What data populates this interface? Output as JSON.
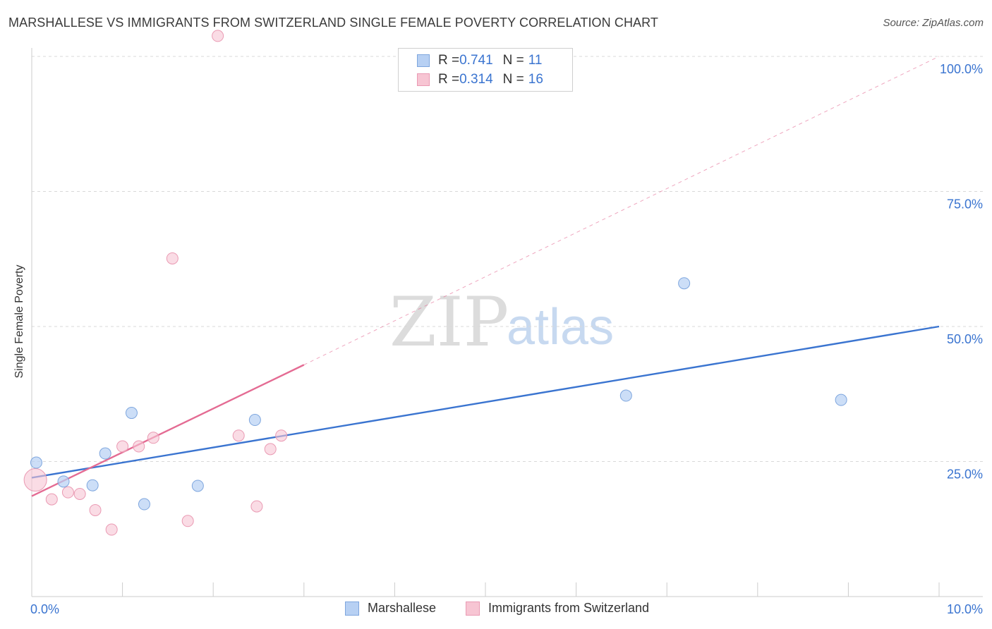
{
  "title": "MARSHALLESE VS IMMIGRANTS FROM SWITZERLAND SINGLE FEMALE POVERTY CORRELATION CHART",
  "source": "Source: ZipAtlas.com",
  "watermark": {
    "part1": "ZIP",
    "part2": "atlas"
  },
  "legend_top": {
    "rows": [
      {
        "r_label": "R = ",
        "r_value": "0.741",
        "n_label": "N = ",
        "n_value": "11"
      },
      {
        "r_label": "R = ",
        "r_value": "0.314",
        "n_label": "N = ",
        "n_value": "16"
      }
    ]
  },
  "legend_bottom": [
    "Marshallese",
    "Immigrants from Switzerland"
  ],
  "colors": {
    "blue_fill": "#b7d0f3",
    "blue_stroke": "#7ea6de",
    "blue_line": "#3a74d0",
    "pink_fill": "#f7c5d3",
    "pink_stroke": "#ea9ab3",
    "pink_line": "#e46b93",
    "tick_label": "#3a74d0",
    "grid": "#d9d9d9"
  },
  "chart_data": {
    "type": "scatter",
    "xlabel": "",
    "ylabel": "Single Female Poverty",
    "xlim": [
      0,
      10
    ],
    "ylim": [
      0,
      100
    ],
    "x_tick_labels": [
      "0.0%",
      "10.0%"
    ],
    "y_ticks": [
      25,
      50,
      75,
      100
    ],
    "y_tick_labels": [
      "25.0%",
      "50.0%",
      "75.0%",
      "100.0%"
    ],
    "grid": true,
    "legend": "top-center",
    "series": [
      {
        "name": "Marshallese",
        "color": "#3a74d0",
        "points": [
          {
            "x": 0.05,
            "y": 24.8
          },
          {
            "x": 0.35,
            "y": 21.3
          },
          {
            "x": 0.67,
            "y": 20.6
          },
          {
            "x": 0.81,
            "y": 26.5
          },
          {
            "x": 1.1,
            "y": 34.0
          },
          {
            "x": 1.24,
            "y": 17.1
          },
          {
            "x": 1.83,
            "y": 20.5
          },
          {
            "x": 2.46,
            "y": 32.7
          },
          {
            "x": 6.55,
            "y": 37.2
          },
          {
            "x": 7.19,
            "y": 58.0
          },
          {
            "x": 8.92,
            "y": 36.4
          }
        ],
        "trend": {
          "x_start": 0.0,
          "y_start": 22.0,
          "x_end": 10.0,
          "y_end": 50.0,
          "dashed_extension": false
        }
      },
      {
        "name": "Immigrants from Switzerland",
        "color": "#e46b93",
        "points": [
          {
            "x": 0.04,
            "y": 21.6
          },
          {
            "x": 0.22,
            "y": 18.0
          },
          {
            "x": 0.4,
            "y": 19.3
          },
          {
            "x": 0.53,
            "y": 19.0
          },
          {
            "x": 0.7,
            "y": 16.0
          },
          {
            "x": 0.88,
            "y": 12.4
          },
          {
            "x": 1.0,
            "y": 27.8
          },
          {
            "x": 1.18,
            "y": 27.8
          },
          {
            "x": 1.34,
            "y": 29.4
          },
          {
            "x": 1.55,
            "y": 62.6
          },
          {
            "x": 1.72,
            "y": 14.0
          },
          {
            "x": 2.05,
            "y": 103.8
          },
          {
            "x": 2.28,
            "y": 29.8
          },
          {
            "x": 2.48,
            "y": 16.7
          },
          {
            "x": 2.63,
            "y": 27.3
          },
          {
            "x": 2.75,
            "y": 29.8
          }
        ],
        "trend": {
          "x_start": 0.0,
          "y_start": 18.6,
          "x_end": 3.0,
          "y_end": 42.9,
          "extended_to_x": 10.0,
          "extended_y": 100.0,
          "dashed_extension": true
        }
      }
    ]
  }
}
